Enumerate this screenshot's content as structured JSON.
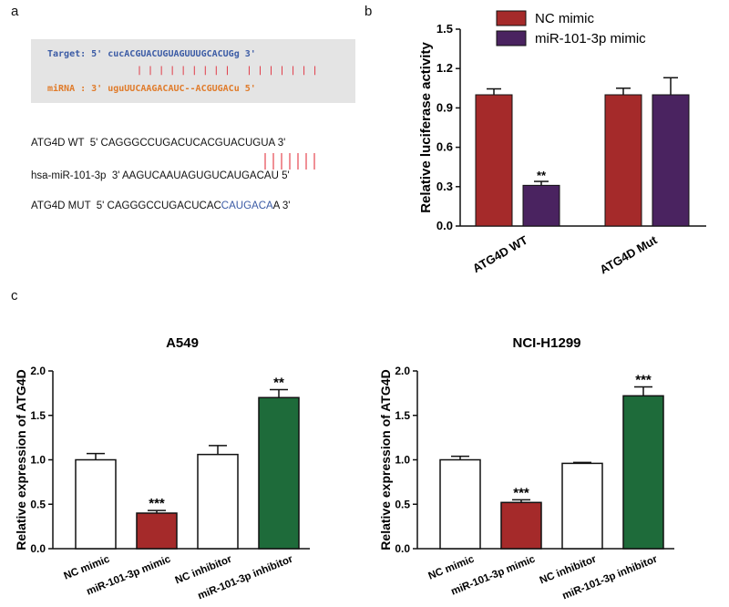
{
  "panel_a": {
    "letter": "a",
    "target_line": "Target: 5' cucACGUACUGUAGUUUGCACUGg 3'",
    "pairs_line": "| | | | | | | | |   | | | | | | |",
    "mirna_line": "miRNA : 3' uguUUCAAGACAUC--ACGUGACu 5'",
    "wt_prefix": "ATG4D WT  5' CAGGGCCUGACUCAC",
    "wt_site": "GUACUGUA",
    "wt_suffix": " 3'",
    "mir_line": "hsa-miR-101-3p  3' AAGUCAAUAGUGUCAUGACAU 5'",
    "mut_prefix": "ATG4D MUT  5' CAGGGCCUGACUCAC",
    "mut_site": "CAUGACA",
    "mut_suffix": "A 3'",
    "colors": {
      "target": "#3b5ba5",
      "mirna": "#e07b2a",
      "pair": "#e0202e",
      "mut": "#3b5ba5",
      "box": "#e4e4e4"
    }
  },
  "panel_b_letter": "b",
  "panel_c_letter": "c",
  "chart_data": [
    {
      "type": "bar",
      "title": "",
      "ylabel": "Relative luciferase activity",
      "xlabel": "",
      "ylim": [
        0,
        1.5
      ],
      "yticks": [
        "0.0",
        "0.3",
        "0.6",
        "0.9",
        "1.2",
        "1.5"
      ],
      "categories": [
        "ATG4D WT",
        "ATG4D Mut"
      ],
      "legend_position": "top",
      "series": [
        {
          "name": "NC mimic",
          "color": "#a52a2a",
          "values": [
            1.0,
            1.0
          ],
          "errors": [
            0.045,
            0.05
          ]
        },
        {
          "name": "miR-101-3p  mimic",
          "color": "#4a2360",
          "values": [
            0.31,
            1.0
          ],
          "errors": [
            0.03,
            0.13
          ]
        }
      ],
      "annotations": [
        {
          "series": 1,
          "index": 0,
          "text": "**"
        }
      ]
    },
    {
      "type": "bar",
      "title": "A549",
      "ylabel": "Relative expression of ATG4D",
      "xlabel": "",
      "ylim": [
        0,
        2.0
      ],
      "yticks": [
        "0.0",
        "0.5",
        "1.0",
        "1.5",
        "2.0"
      ],
      "categories": [
        "NC mimic",
        "miR-101-3p mimic",
        "NC inhibitor",
        "miR-101-3p inhibitor"
      ],
      "values": [
        1.0,
        0.4,
        1.06,
        1.7
      ],
      "errors": [
        0.07,
        0.03,
        0.1,
        0.09
      ],
      "colors": [
        "#ffffff",
        "#a52a2a",
        "#ffffff",
        "#1e6b3a"
      ],
      "annotations": [
        "",
        "***",
        "",
        "**"
      ]
    },
    {
      "type": "bar",
      "title": "NCI-H1299",
      "ylabel": "Relative expression of ATG4D",
      "xlabel": "",
      "ylim": [
        0,
        2.0
      ],
      "yticks": [
        "0.0",
        "0.5",
        "1.0",
        "1.5",
        "2.0"
      ],
      "categories": [
        "NC mimic",
        "miR-101-3p mimic",
        "NC inhibitor",
        "miR-101-3p inhibitor"
      ],
      "values": [
        1.0,
        0.52,
        0.96,
        1.72
      ],
      "errors": [
        0.04,
        0.03,
        0.01,
        0.1
      ],
      "colors": [
        "#ffffff",
        "#a52a2a",
        "#ffffff",
        "#1e6b3a"
      ],
      "annotations": [
        "",
        "***",
        "",
        "***"
      ]
    }
  ]
}
